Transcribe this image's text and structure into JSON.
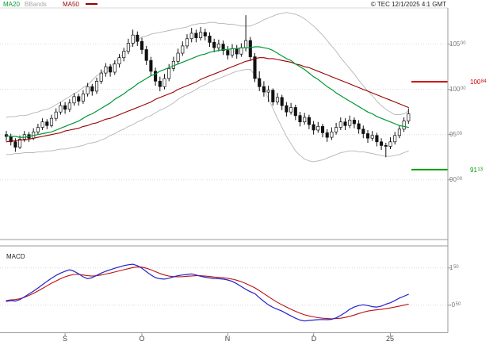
{
  "header": {
    "legend": [
      {
        "label": "MA20",
        "color": "#009933"
      },
      {
        "label": "BBands",
        "color": "#a6a6a6"
      },
      {
        "label": "MA50",
        "color": "#990000"
      }
    ],
    "copyright": "© TEC 12/1/2025 4:1 GMT"
  },
  "chart_data": {
    "type": "candlestick",
    "indicators": [
      "MA20",
      "MA50",
      "BBands",
      "MACD"
    ],
    "price_panel": {
      "ylim": [
        83.4,
        109.0
      ],
      "y_ticks": [
        {
          "main": "105",
          "sup": "00",
          "value": 105
        },
        {
          "main": "100",
          "sup": "00",
          "value": 100
        },
        {
          "main": "95",
          "sup": "00",
          "value": 95
        },
        {
          "main": "90",
          "sup": "00",
          "value": 90
        }
      ],
      "levels": [
        {
          "main": "100",
          "sup": "84",
          "value": 100.84,
          "color": "#cc0000",
          "role": "resistance"
        },
        {
          "main": "91",
          "sup": "13",
          "value": 91.13,
          "color": "#009900",
          "role": "support"
        }
      ],
      "candles": [
        [
          95.0,
          95.4,
          94.3,
          94.8
        ],
        [
          94.8,
          95.1,
          93.8,
          94.2
        ],
        [
          94.2,
          94.6,
          93.1,
          93.6
        ],
        [
          93.6,
          94.9,
          93.4,
          94.5
        ],
        [
          94.5,
          95.4,
          94.2,
          95.0
        ],
        [
          95.0,
          95.3,
          94.2,
          94.6
        ],
        [
          94.6,
          95.7,
          94.4,
          95.3
        ],
        [
          95.3,
          96.2,
          95.0,
          95.8
        ],
        [
          95.8,
          96.8,
          95.5,
          96.4
        ],
        [
          96.4,
          96.7,
          95.6,
          96.0
        ],
        [
          96.0,
          97.2,
          95.8,
          96.8
        ],
        [
          96.8,
          97.9,
          96.5,
          97.5
        ],
        [
          97.5,
          98.6,
          97.2,
          98.2
        ],
        [
          98.2,
          98.6,
          97.3,
          97.8
        ],
        [
          97.8,
          98.9,
          97.5,
          98.5
        ],
        [
          98.5,
          99.6,
          98.2,
          99.2
        ],
        [
          99.2,
          99.5,
          98.2,
          98.7
        ],
        [
          98.7,
          99.9,
          98.4,
          99.5
        ],
        [
          99.5,
          100.7,
          99.2,
          100.3
        ],
        [
          100.3,
          100.6,
          99.3,
          99.8
        ],
        [
          99.8,
          101.3,
          99.5,
          100.9
        ],
        [
          100.9,
          102.2,
          100.6,
          101.8
        ],
        [
          101.8,
          102.9,
          101.4,
          102.5
        ],
        [
          102.5,
          102.8,
          101.4,
          101.9
        ],
        [
          101.9,
          103.2,
          101.6,
          102.8
        ],
        [
          102.8,
          103.9,
          102.4,
          103.5
        ],
        [
          103.5,
          104.6,
          103.1,
          104.2
        ],
        [
          104.2,
          105.6,
          103.9,
          105.1
        ],
        [
          105.1,
          106.6,
          104.7,
          106.0
        ],
        [
          106.0,
          106.4,
          104.8,
          105.3
        ],
        [
          105.3,
          105.7,
          103.9,
          104.4
        ],
        [
          104.4,
          104.8,
          102.7,
          103.2
        ],
        [
          103.2,
          103.6,
          101.5,
          102.0
        ],
        [
          102.0,
          102.4,
          100.4,
          100.9
        ],
        [
          100.9,
          101.4,
          99.8,
          100.3
        ],
        [
          100.3,
          101.7,
          100.0,
          101.2
        ],
        [
          101.2,
          102.8,
          100.9,
          102.3
        ],
        [
          102.3,
          103.6,
          102.0,
          103.1
        ],
        [
          103.1,
          104.5,
          102.8,
          104.0
        ],
        [
          104.0,
          105.3,
          103.7,
          104.8
        ],
        [
          104.8,
          106.1,
          104.5,
          105.6
        ],
        [
          105.6,
          106.8,
          105.2,
          106.2
        ],
        [
          106.2,
          106.6,
          105.2,
          105.7
        ],
        [
          105.7,
          106.9,
          105.4,
          106.3
        ],
        [
          106.3,
          106.7,
          105.4,
          105.9
        ],
        [
          105.9,
          106.3,
          104.7,
          105.2
        ],
        [
          105.2,
          105.6,
          104.1,
          104.6
        ],
        [
          104.6,
          105.5,
          104.2,
          105.0
        ],
        [
          105.0,
          105.4,
          103.8,
          104.3
        ],
        [
          104.3,
          104.8,
          103.3,
          103.8
        ],
        [
          103.8,
          105.0,
          103.5,
          104.5
        ],
        [
          104.5,
          104.9,
          103.4,
          103.9
        ],
        [
          103.9,
          105.1,
          103.6,
          104.6
        ],
        [
          104.6,
          108.2,
          104.2,
          105.4
        ],
        [
          105.4,
          105.8,
          103.2,
          103.6
        ],
        [
          103.6,
          104.0,
          100.8,
          101.2
        ],
        [
          101.2,
          102.0,
          99.8,
          100.3
        ],
        [
          100.3,
          100.9,
          99.2,
          99.7
        ],
        [
          99.7,
          100.4,
          98.6,
          99.9
        ],
        [
          99.9,
          100.1,
          98.2,
          98.6
        ],
        [
          98.6,
          99.6,
          98.3,
          99.1
        ],
        [
          99.1,
          99.4,
          97.7,
          98.2
        ],
        [
          98.2,
          98.6,
          97.0,
          97.5
        ],
        [
          97.5,
          98.5,
          97.2,
          98.0
        ],
        [
          98.0,
          98.3,
          96.6,
          97.1
        ],
        [
          97.1,
          97.5,
          95.9,
          96.4
        ],
        [
          96.4,
          97.4,
          96.1,
          96.9
        ],
        [
          96.9,
          97.2,
          95.6,
          96.1
        ],
        [
          96.1,
          96.5,
          95.0,
          95.5
        ],
        [
          95.5,
          96.4,
          95.2,
          95.9
        ],
        [
          95.9,
          96.2,
          94.7,
          95.2
        ],
        [
          95.2,
          95.6,
          94.2,
          94.7
        ],
        [
          94.7,
          95.8,
          94.4,
          95.3
        ],
        [
          95.3,
          96.3,
          95.0,
          95.8
        ],
        [
          95.8,
          96.9,
          95.5,
          96.4
        ],
        [
          96.4,
          96.8,
          95.5,
          96.0
        ],
        [
          96.0,
          97.1,
          95.7,
          96.6
        ],
        [
          96.6,
          96.9,
          95.7,
          96.2
        ],
        [
          96.2,
          96.6,
          95.1,
          95.6
        ],
        [
          95.6,
          96.0,
          94.6,
          95.1
        ],
        [
          95.1,
          95.5,
          94.1,
          94.6
        ],
        [
          94.6,
          95.4,
          94.3,
          94.9
        ],
        [
          94.9,
          95.2,
          93.7,
          94.2
        ],
        [
          94.2,
          94.6,
          93.3,
          93.8
        ],
        [
          93.8,
          94.1,
          92.5,
          93.7
        ],
        [
          93.7,
          94.7,
          93.4,
          94.2
        ],
        [
          94.2,
          95.3,
          93.9,
          94.9
        ],
        [
          94.9,
          96.0,
          94.6,
          95.6
        ],
        [
          95.6,
          96.9,
          95.3,
          96.5
        ],
        [
          96.5,
          97.9,
          96.2,
          97.3
        ]
      ],
      "ma20": [
        94.9,
        94.8,
        94.8,
        94.7,
        94.7,
        94.8,
        94.9,
        95.0,
        95.1,
        95.2,
        95.3,
        95.5,
        95.7,
        95.9,
        96.1,
        96.3,
        96.5,
        96.8,
        97.1,
        97.3,
        97.6,
        97.9,
        98.2,
        98.5,
        98.9,
        99.2,
        99.5,
        99.9,
        100.2,
        100.6,
        100.9,
        101.2,
        101.5,
        101.7,
        102.0,
        102.2,
        102.4,
        102.6,
        102.8,
        103.0,
        103.2,
        103.4,
        103.6,
        103.8,
        103.9,
        104.1,
        104.2,
        104.3,
        104.4,
        104.4,
        104.5,
        104.5,
        104.6,
        104.6,
        104.6,
        104.7,
        104.7,
        104.6,
        104.5,
        104.3,
        104.0,
        103.7,
        103.4,
        103.2,
        102.8,
        102.5,
        102.2,
        101.8,
        101.4,
        101.1,
        100.7,
        100.3,
        100.0,
        99.6,
        99.3,
        99.0,
        98.7,
        98.4,
        98.1,
        97.8,
        97.5,
        97.3,
        97.0,
        96.8,
        96.6,
        96.4,
        96.2,
        96.0,
        95.9,
        95.8
      ],
      "ma50": [
        94.2,
        94.3,
        94.3,
        94.4,
        94.4,
        94.5,
        94.6,
        94.7,
        94.8,
        94.9,
        95.0,
        95.1,
        95.2,
        95.4,
        95.5,
        95.6,
        95.7,
        95.9,
        96.0,
        96.2,
        96.3,
        96.5,
        96.7,
        96.8,
        97.0,
        97.2,
        97.4,
        97.6,
        97.8,
        98.0,
        98.2,
        98.4,
        98.6,
        98.9,
        99.1,
        99.3,
        99.5,
        99.7,
        100.0,
        100.2,
        100.4,
        100.6,
        100.8,
        101.1,
        101.3,
        101.5,
        101.7,
        101.9,
        102.1,
        102.3,
        102.5,
        102.7,
        102.9,
        103.1,
        103.2,
        103.4,
        103.5,
        103.5,
        103.4,
        103.4,
        103.3,
        103.2,
        103.1,
        103.0,
        102.8,
        102.7,
        102.5,
        102.4,
        102.2,
        102.0,
        101.8,
        101.6,
        101.4,
        101.2,
        101.0,
        100.8,
        100.6,
        100.4,
        100.2,
        100.0,
        99.8,
        99.6,
        99.4,
        99.2,
        99.0,
        98.8,
        98.6,
        98.4,
        98.2,
        98.0
      ],
      "bb_upper": [
        96.9,
        97.0,
        97.0,
        97.1,
        97.1,
        97.2,
        97.4,
        97.5,
        97.7,
        97.8,
        98.0,
        98.3,
        98.6,
        98.9,
        99.2,
        99.5,
        99.8,
        100.2,
        100.5,
        101.0,
        101.5,
        101.8,
        102.2,
        102.5,
        103.0,
        103.5,
        104.0,
        104.5,
        105.0,
        105.4,
        105.8,
        105.9,
        106.1,
        106.2,
        106.3,
        106.4,
        106.5,
        106.6,
        106.7,
        106.8,
        106.9,
        107.1,
        107.2,
        107.3,
        107.3,
        107.4,
        107.4,
        107.3,
        107.3,
        107.2,
        107.2,
        107.1,
        107.0,
        107.0,
        107.0,
        107.2,
        107.4,
        107.7,
        107.9,
        108.1,
        108.3,
        108.4,
        108.5,
        108.4,
        108.3,
        108.1,
        107.8,
        107.4,
        107.0,
        106.5,
        106.0,
        105.4,
        104.8,
        104.2,
        103.5,
        102.9,
        102.3,
        101.7,
        101.0,
        100.4,
        99.8,
        99.3,
        98.7,
        98.2,
        97.8,
        97.5,
        97.2,
        97.2,
        97.3,
        97.6
      ],
      "bb_lower": [
        92.8,
        92.8,
        92.9,
        92.9,
        93.0,
        93.0,
        93.0,
        93.1,
        93.1,
        93.2,
        93.2,
        93.3,
        93.4,
        93.4,
        93.5,
        93.6,
        93.7,
        93.8,
        94.0,
        94.1,
        94.2,
        94.4,
        94.6,
        94.9,
        95.1,
        95.4,
        95.6,
        95.9,
        96.1,
        96.4,
        96.6,
        96.9,
        97.1,
        97.4,
        97.7,
        97.9,
        98.2,
        98.5,
        98.9,
        99.2,
        99.5,
        99.7,
        100.0,
        100.3,
        100.5,
        100.8,
        101.0,
        101.2,
        101.4,
        101.6,
        101.8,
        102.0,
        102.1,
        102.2,
        102.2,
        101.6,
        101.0,
        100.0,
        99.0,
        97.9,
        96.8,
        95.8,
        94.8,
        94.0,
        93.2,
        92.7,
        92.3,
        92.1,
        92.0,
        92.1,
        92.2,
        92.4,
        92.6,
        92.8,
        93.0,
        93.1,
        93.2,
        93.2,
        93.1,
        93.1,
        93.0,
        92.9,
        92.8,
        92.7,
        92.6,
        92.6,
        92.7,
        92.8,
        93.0,
        93.2
      ]
    },
    "macd_panel": {
      "label": "MACD",
      "ylim": [
        -1.96,
        2.64
      ],
      "y_ticks": [
        {
          "main": "1",
          "sup": "50",
          "value": 1.5
        },
        {
          "main": "-0",
          "sup": "50",
          "value": -0.5
        }
      ],
      "macd": [
        -0.3,
        -0.25,
        -0.28,
        -0.2,
        -0.05,
        0.1,
        0.25,
        0.42,
        0.6,
        0.78,
        0.95,
        1.1,
        1.22,
        1.32,
        1.4,
        1.32,
        1.18,
        1.02,
        0.92,
        0.98,
        1.1,
        1.22,
        1.32,
        1.4,
        1.48,
        1.55,
        1.62,
        1.67,
        1.7,
        1.62,
        1.48,
        1.3,
        1.12,
        0.98,
        0.92,
        0.9,
        0.95,
        1.02,
        1.08,
        1.12,
        1.15,
        1.18,
        1.12,
        1.05,
        1.0,
        0.96,
        0.93,
        0.92,
        0.9,
        0.85,
        0.78,
        0.65,
        0.5,
        0.35,
        0.22,
        0.12,
        -0.1,
        -0.3,
        -0.48,
        -0.62,
        -0.72,
        -0.82,
        -0.95,
        -1.08,
        -1.2,
        -1.3,
        -1.35,
        -1.32,
        -1.3,
        -1.28,
        -1.27,
        -1.28,
        -1.26,
        -1.18,
        -1.05,
        -0.9,
        -0.72,
        -0.6,
        -0.52,
        -0.48,
        -0.52,
        -0.58,
        -0.6,
        -0.55,
        -0.45,
        -0.37,
        -0.25,
        -0.12,
        -0.02,
        0.08
      ],
      "signal": [
        -0.25,
        -0.22,
        -0.2,
        -0.15,
        -0.08,
        0.02,
        0.13,
        0.26,
        0.4,
        0.54,
        0.68,
        0.8,
        0.92,
        1.02,
        1.1,
        1.15,
        1.15,
        1.12,
        1.08,
        1.06,
        1.08,
        1.12,
        1.17,
        1.22,
        1.28,
        1.34,
        1.4,
        1.46,
        1.52,
        1.55,
        1.54,
        1.48,
        1.4,
        1.3,
        1.2,
        1.12,
        1.06,
        1.03,
        1.02,
        1.03,
        1.05,
        1.07,
        1.08,
        1.08,
        1.06,
        1.04,
        1.01,
        0.99,
        0.97,
        0.94,
        0.9,
        0.84,
        0.76,
        0.66,
        0.55,
        0.43,
        0.28,
        0.12,
        -0.04,
        -0.2,
        -0.35,
        -0.48,
        -0.6,
        -0.72,
        -0.83,
        -0.93,
        -1.02,
        -1.08,
        -1.13,
        -1.17,
        -1.2,
        -1.22,
        -1.23,
        -1.22,
        -1.2,
        -1.16,
        -1.1,
        -1.03,
        -0.95,
        -0.88,
        -0.82,
        -0.78,
        -0.75,
        -0.72,
        -0.69,
        -0.65,
        -0.6,
        -0.55,
        -0.5,
        -0.45
      ],
      "line_colors": {
        "macd": "#2222cc",
        "signal": "#bb1111"
      }
    },
    "x_ticks": [
      {
        "label": "S",
        "index": 13
      },
      {
        "label": "O",
        "index": 30
      },
      {
        "label": "N",
        "index": 49
      },
      {
        "label": "D",
        "index": 68
      },
      {
        "label": "25",
        "index": 85
      }
    ]
  }
}
